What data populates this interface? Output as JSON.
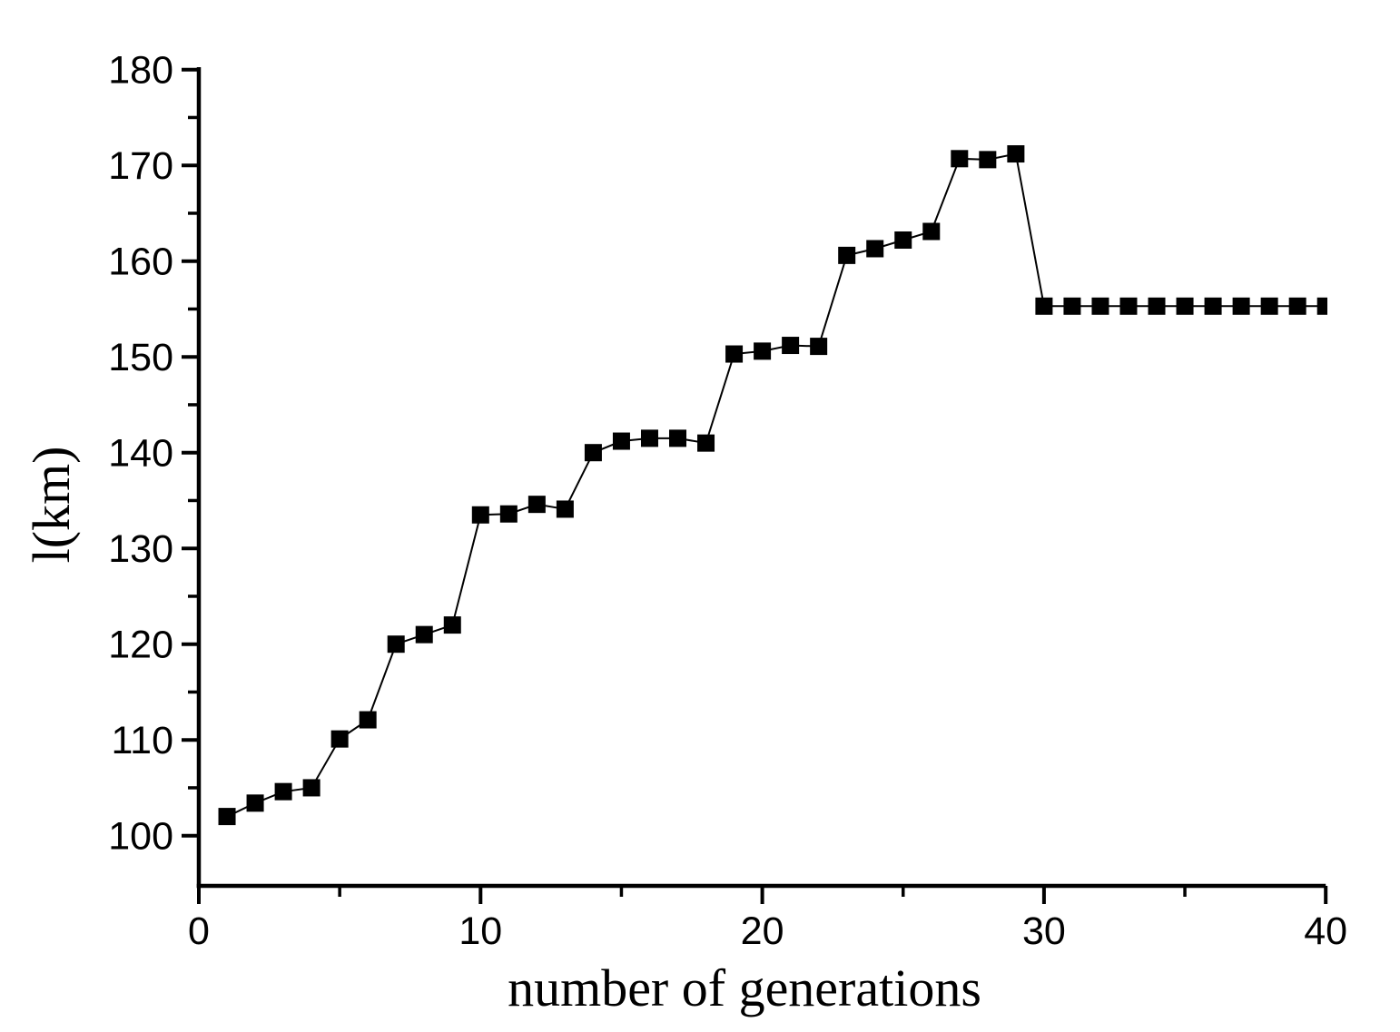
{
  "figure": {
    "background_color": "#ffffff",
    "axis_color": "#000000",
    "line_color": "#000000",
    "marker_color": "#000000"
  },
  "chart_data": {
    "type": "line",
    "title": "",
    "xlabel": "number of generations",
    "ylabel": "l(km)",
    "legend_position": "none",
    "grid": false,
    "marker": "filled-square",
    "xlim": [
      0,
      40
    ],
    "ylim": [
      94.8,
      180
    ],
    "x_major_ticks": [
      0,
      10,
      20,
      30,
      40
    ],
    "x_minor_ticks": [
      5,
      15,
      25,
      35
    ],
    "y_major_ticks": [
      100,
      110,
      120,
      130,
      140,
      150,
      160,
      170,
      180
    ],
    "y_minor_ticks": [
      95,
      105,
      115,
      125,
      135,
      145,
      155,
      165,
      175
    ],
    "x_tick_labels": [
      "0",
      "10",
      "20",
      "30",
      "40"
    ],
    "y_tick_labels": [
      "100",
      "110",
      "120",
      "130",
      "140",
      "150",
      "160",
      "170",
      "180"
    ],
    "series": [
      {
        "name": "l",
        "x": [
          1,
          2,
          3,
          4,
          5,
          6,
          7,
          8,
          9,
          10,
          11,
          12,
          13,
          14,
          15,
          16,
          17,
          18,
          19,
          20,
          21,
          22,
          23,
          24,
          25,
          26,
          27,
          28,
          29,
          30,
          31,
          32,
          33,
          34,
          35,
          36,
          37,
          38,
          39,
          40
        ],
        "values": [
          102.0,
          103.4,
          104.6,
          105.0,
          110.1,
          112.1,
          120.0,
          121.0,
          122.0,
          133.5,
          133.6,
          134.6,
          134.1,
          140.0,
          141.2,
          141.5,
          141.5,
          141.0,
          150.3,
          150.6,
          151.2,
          151.1,
          160.6,
          161.3,
          162.2,
          163.1,
          170.7,
          170.6,
          171.2,
          155.3,
          155.3,
          155.3,
          155.3,
          155.3,
          155.3,
          155.3,
          155.3,
          155.3,
          155.3,
          155.3
        ]
      }
    ]
  }
}
